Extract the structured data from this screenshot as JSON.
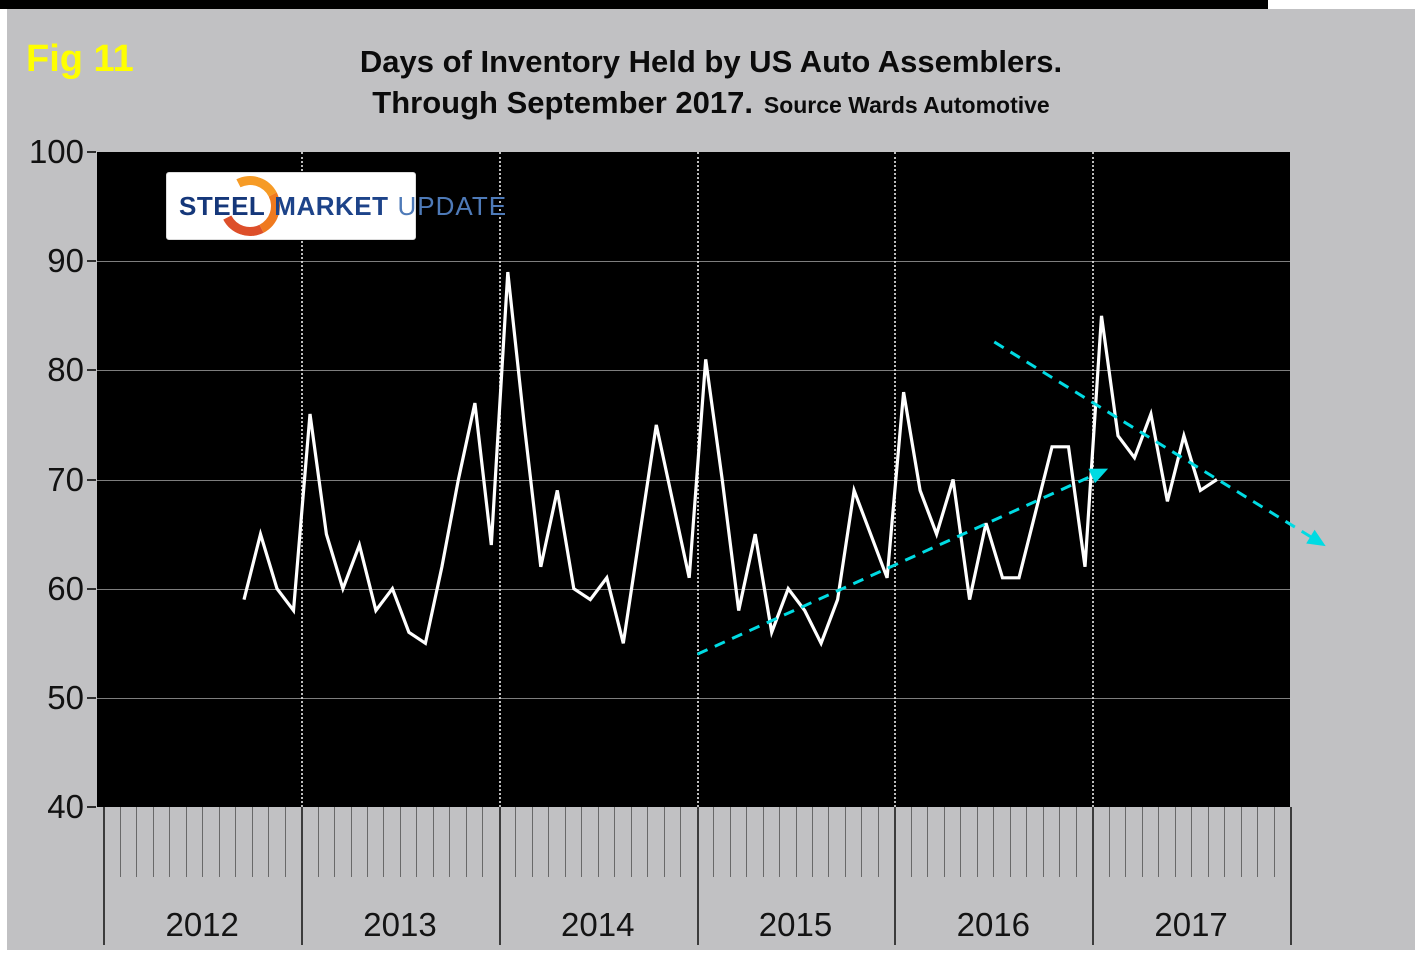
{
  "figure_label": "Fig 11",
  "title": {
    "line1": "Days of Inventory Held by US Auto Assemblers.",
    "line2": "Through September 2017.",
    "source_note": "Source Wards Automotive"
  },
  "logo": {
    "word1": "STEEL",
    "word2": "MARKET",
    "word3": "UPDATE"
  },
  "colors": {
    "figure_label": "#ffff00",
    "panel_background": "#c1c1c3",
    "plot_background": "#000000",
    "data_line": "#ffffff",
    "trend_line": "#00dbe3",
    "horizontal_grid": "#7e7e7e",
    "vertical_grid_dotted": "#ebebeb"
  },
  "chart_data": {
    "type": "line",
    "title": "Days of Inventory Held by US Auto Assemblers. Through September 2017.",
    "source": "Wards Automotive",
    "ylabel": "",
    "xlabel": "",
    "ylim": [
      40,
      100
    ],
    "y_ticks": [
      100,
      90,
      80,
      70,
      60,
      50,
      40
    ],
    "x_year_labels": [
      "2012",
      "2013",
      "2014",
      "2015",
      "2016",
      "2017"
    ],
    "x_axis_span": "Jan 2012 - Dec 2017, monthly ticks, dotted gridline at each year boundary",
    "legend": "none",
    "x": [
      "Oct 2012",
      "Nov 2012",
      "Dec 2012",
      "Jan 2013",
      "Feb 2013",
      "Mar 2013",
      "Apr 2013",
      "May 2013",
      "Jun 2013",
      "Jul 2013",
      "Aug 2013",
      "Sep 2013",
      "Oct 2013",
      "Nov 2013",
      "Dec 2013",
      "Jan 2014",
      "Feb 2014",
      "Mar 2014",
      "Apr 2014",
      "May 2014",
      "Jun 2014",
      "Jul 2014",
      "Aug 2014",
      "Sep 2014",
      "Oct 2014",
      "Nov 2014",
      "Dec 2014",
      "Jan 2015",
      "Feb 2015",
      "Mar 2015",
      "Apr 2015",
      "May 2015",
      "Jun 2015",
      "Jul 2015",
      "Aug 2015",
      "Sep 2015",
      "Oct 2015",
      "Nov 2015",
      "Dec 2015",
      "Jan 2016",
      "Feb 2016",
      "Mar 2016",
      "Apr 2016",
      "May 2016",
      "Jun 2016",
      "Jul 2016",
      "Aug 2016",
      "Sep 2016",
      "Oct 2016",
      "Nov 2016",
      "Dec 2016",
      "Jan 2017",
      "Feb 2017",
      "Mar 2017",
      "Apr 2017",
      "May 2017",
      "Jun 2017",
      "Jul 2017",
      "Aug 2017",
      "Sep 2017"
    ],
    "series": [
      {
        "name": "Days of inventory held by US auto assemblers",
        "color": "#ffffff",
        "values": [
          59,
          65,
          60,
          58,
          76,
          65,
          60,
          64,
          58,
          60,
          56,
          55,
          62,
          70,
          77,
          64,
          89,
          75,
          62,
          69,
          60,
          59,
          61,
          55,
          65,
          75,
          68,
          61,
          81,
          70,
          58,
          65,
          56,
          60,
          58,
          55,
          59,
          69,
          65,
          61,
          78,
          69,
          65,
          70,
          59,
          66,
          61,
          61,
          67,
          73,
          73,
          62,
          85,
          74,
          72,
          76,
          68,
          74,
          69,
          70
        ]
      }
    ],
    "trendlines": [
      {
        "name": "uptrend",
        "color": "#00dbe3",
        "style": "dashed",
        "arrow": true,
        "from": {
          "x_index": 27.5,
          "value": 54.0
        },
        "to": {
          "x_index": 52.4,
          "value": 71.0
        }
      },
      {
        "name": "downtrend",
        "color": "#00dbe3",
        "style": "dashed",
        "arrow": true,
        "from": {
          "x_index": 45.5,
          "value": 82.6
        },
        "to": {
          "x_index": 65.6,
          "value": 63.9
        }
      }
    ]
  }
}
